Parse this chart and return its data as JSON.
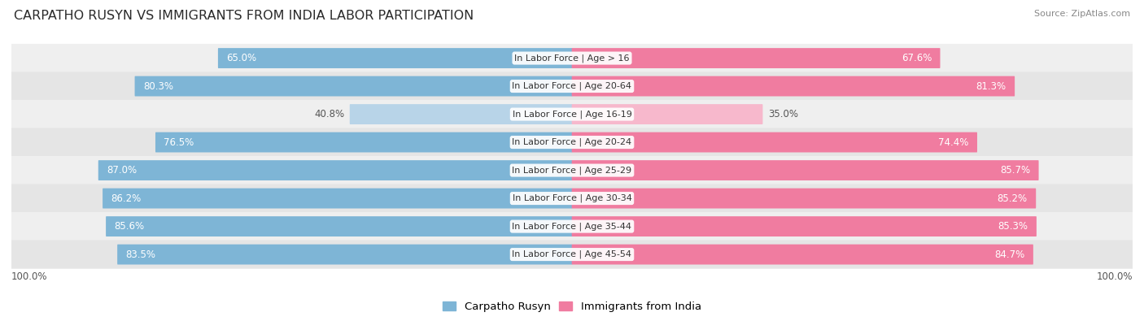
{
  "title": "CARPATHO RUSYN VS IMMIGRANTS FROM INDIA LABOR PARTICIPATION",
  "source": "Source: ZipAtlas.com",
  "categories": [
    "In Labor Force | Age > 16",
    "In Labor Force | Age 20-64",
    "In Labor Force | Age 16-19",
    "In Labor Force | Age 20-24",
    "In Labor Force | Age 25-29",
    "In Labor Force | Age 30-34",
    "In Labor Force | Age 35-44",
    "In Labor Force | Age 45-54"
  ],
  "carpatho_values": [
    65.0,
    80.3,
    40.8,
    76.5,
    87.0,
    86.2,
    85.6,
    83.5
  ],
  "india_values": [
    67.6,
    81.3,
    35.0,
    74.4,
    85.7,
    85.2,
    85.3,
    84.7
  ],
  "carpatho_color": "#7eb5d6",
  "india_color": "#f07ca0",
  "carpatho_color_light": "#b8d4e8",
  "india_color_light": "#f7b8cc",
  "row_bg_colors": [
    "#efefef",
    "#e5e5e5"
  ],
  "title_fontsize": 11.5,
  "label_fontsize": 8.5,
  "cat_fontsize": 8.0,
  "legend_fontsize": 9.5,
  "text_color_white": "#ffffff",
  "text_color_dark": "#555555",
  "footer_label": "100.0%",
  "max_val": 100.0
}
